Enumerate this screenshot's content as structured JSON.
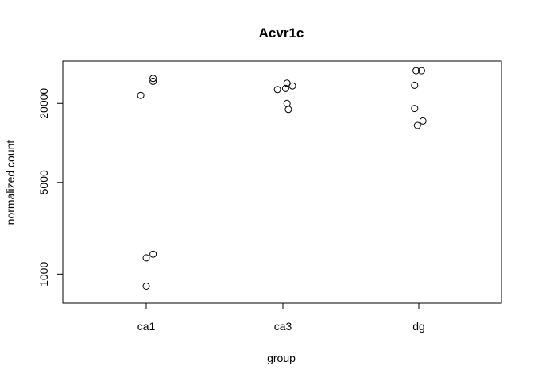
{
  "chart_data": {
    "type": "scatter",
    "title": "Acvr1c",
    "xlabel": "group",
    "ylabel": "normalized count",
    "y_scale": "log",
    "categories": [
      "ca1",
      "ca3",
      "dg"
    ],
    "yticks": [
      1000,
      5000,
      20000
    ],
    "ytick_labels": [
      "1000",
      "5000",
      "20000"
    ],
    "ylim": [
      600,
      42000
    ],
    "grid": false,
    "points": [
      {
        "group": "ca1",
        "jitter": -0.04,
        "y": 23000
      },
      {
        "group": "ca1",
        "jitter": 0.05,
        "y": 31000
      },
      {
        "group": "ca1",
        "jitter": 0.05,
        "y": 29500
      },
      {
        "group": "ca1",
        "jitter": 0.0,
        "y": 1330
      },
      {
        "group": "ca1",
        "jitter": 0.05,
        "y": 1420
      },
      {
        "group": "ca1",
        "jitter": 0.0,
        "y": 810
      },
      {
        "group": "ca3",
        "jitter": -0.04,
        "y": 25500
      },
      {
        "group": "ca3",
        "jitter": 0.02,
        "y": 26000
      },
      {
        "group": "ca3",
        "jitter": 0.03,
        "y": 28500
      },
      {
        "group": "ca3",
        "jitter": 0.07,
        "y": 27200
      },
      {
        "group": "ca3",
        "jitter": 0.03,
        "y": 20000
      },
      {
        "group": "ca3",
        "jitter": 0.04,
        "y": 18000
      },
      {
        "group": "dg",
        "jitter": -0.02,
        "y": 35500
      },
      {
        "group": "dg",
        "jitter": 0.02,
        "y": 35500
      },
      {
        "group": "dg",
        "jitter": -0.03,
        "y": 27500
      },
      {
        "group": "dg",
        "jitter": -0.03,
        "y": 18300
      },
      {
        "group": "dg",
        "jitter": 0.03,
        "y": 14700
      },
      {
        "group": "dg",
        "jitter": -0.01,
        "y": 13600
      }
    ]
  }
}
